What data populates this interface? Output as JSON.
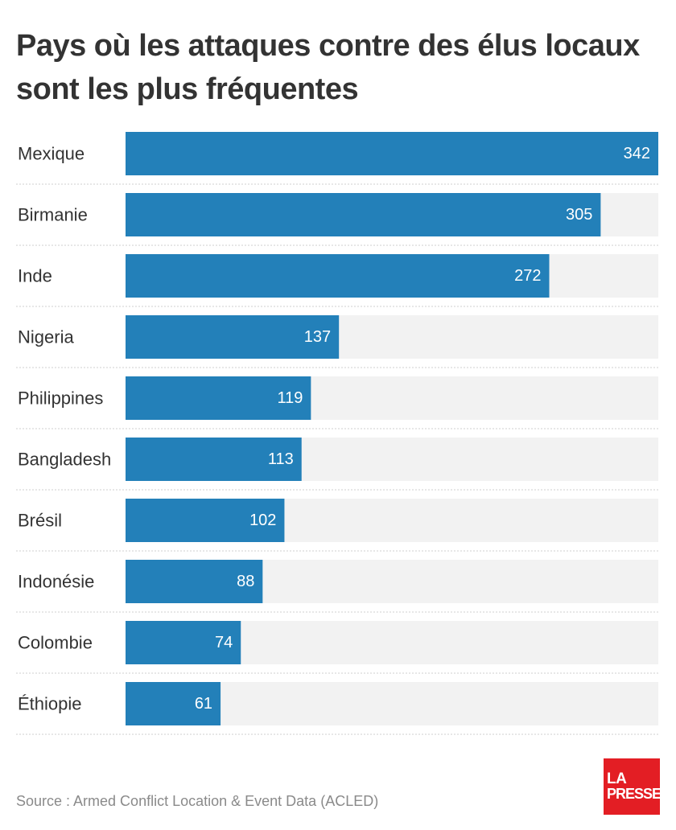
{
  "chart_data": {
    "type": "bar",
    "orientation": "horizontal",
    "title": "Pays où les attaques contre des élus locaux sont les plus fréquentes",
    "categories": [
      "Mexique",
      "Birmanie",
      "Inde",
      "Nigeria",
      "Philippines",
      "Bangladesh",
      "Brésil",
      "Indonésie",
      "Colombie",
      "Éthiopie"
    ],
    "values": [
      342,
      305,
      272,
      137,
      119,
      113,
      102,
      88,
      74,
      61
    ],
    "xlim": [
      0,
      342
    ],
    "grid": false,
    "bar_color": "#2380b9",
    "track_color": "#f2f2f2"
  },
  "footer": {
    "source": "Source : Armed Conflict Location & Event Data (ACLED)",
    "logo_line1": "LA",
    "logo_line2": "PRESSE"
  },
  "colors": {
    "logo": "#e31e24",
    "text": "#333333"
  }
}
